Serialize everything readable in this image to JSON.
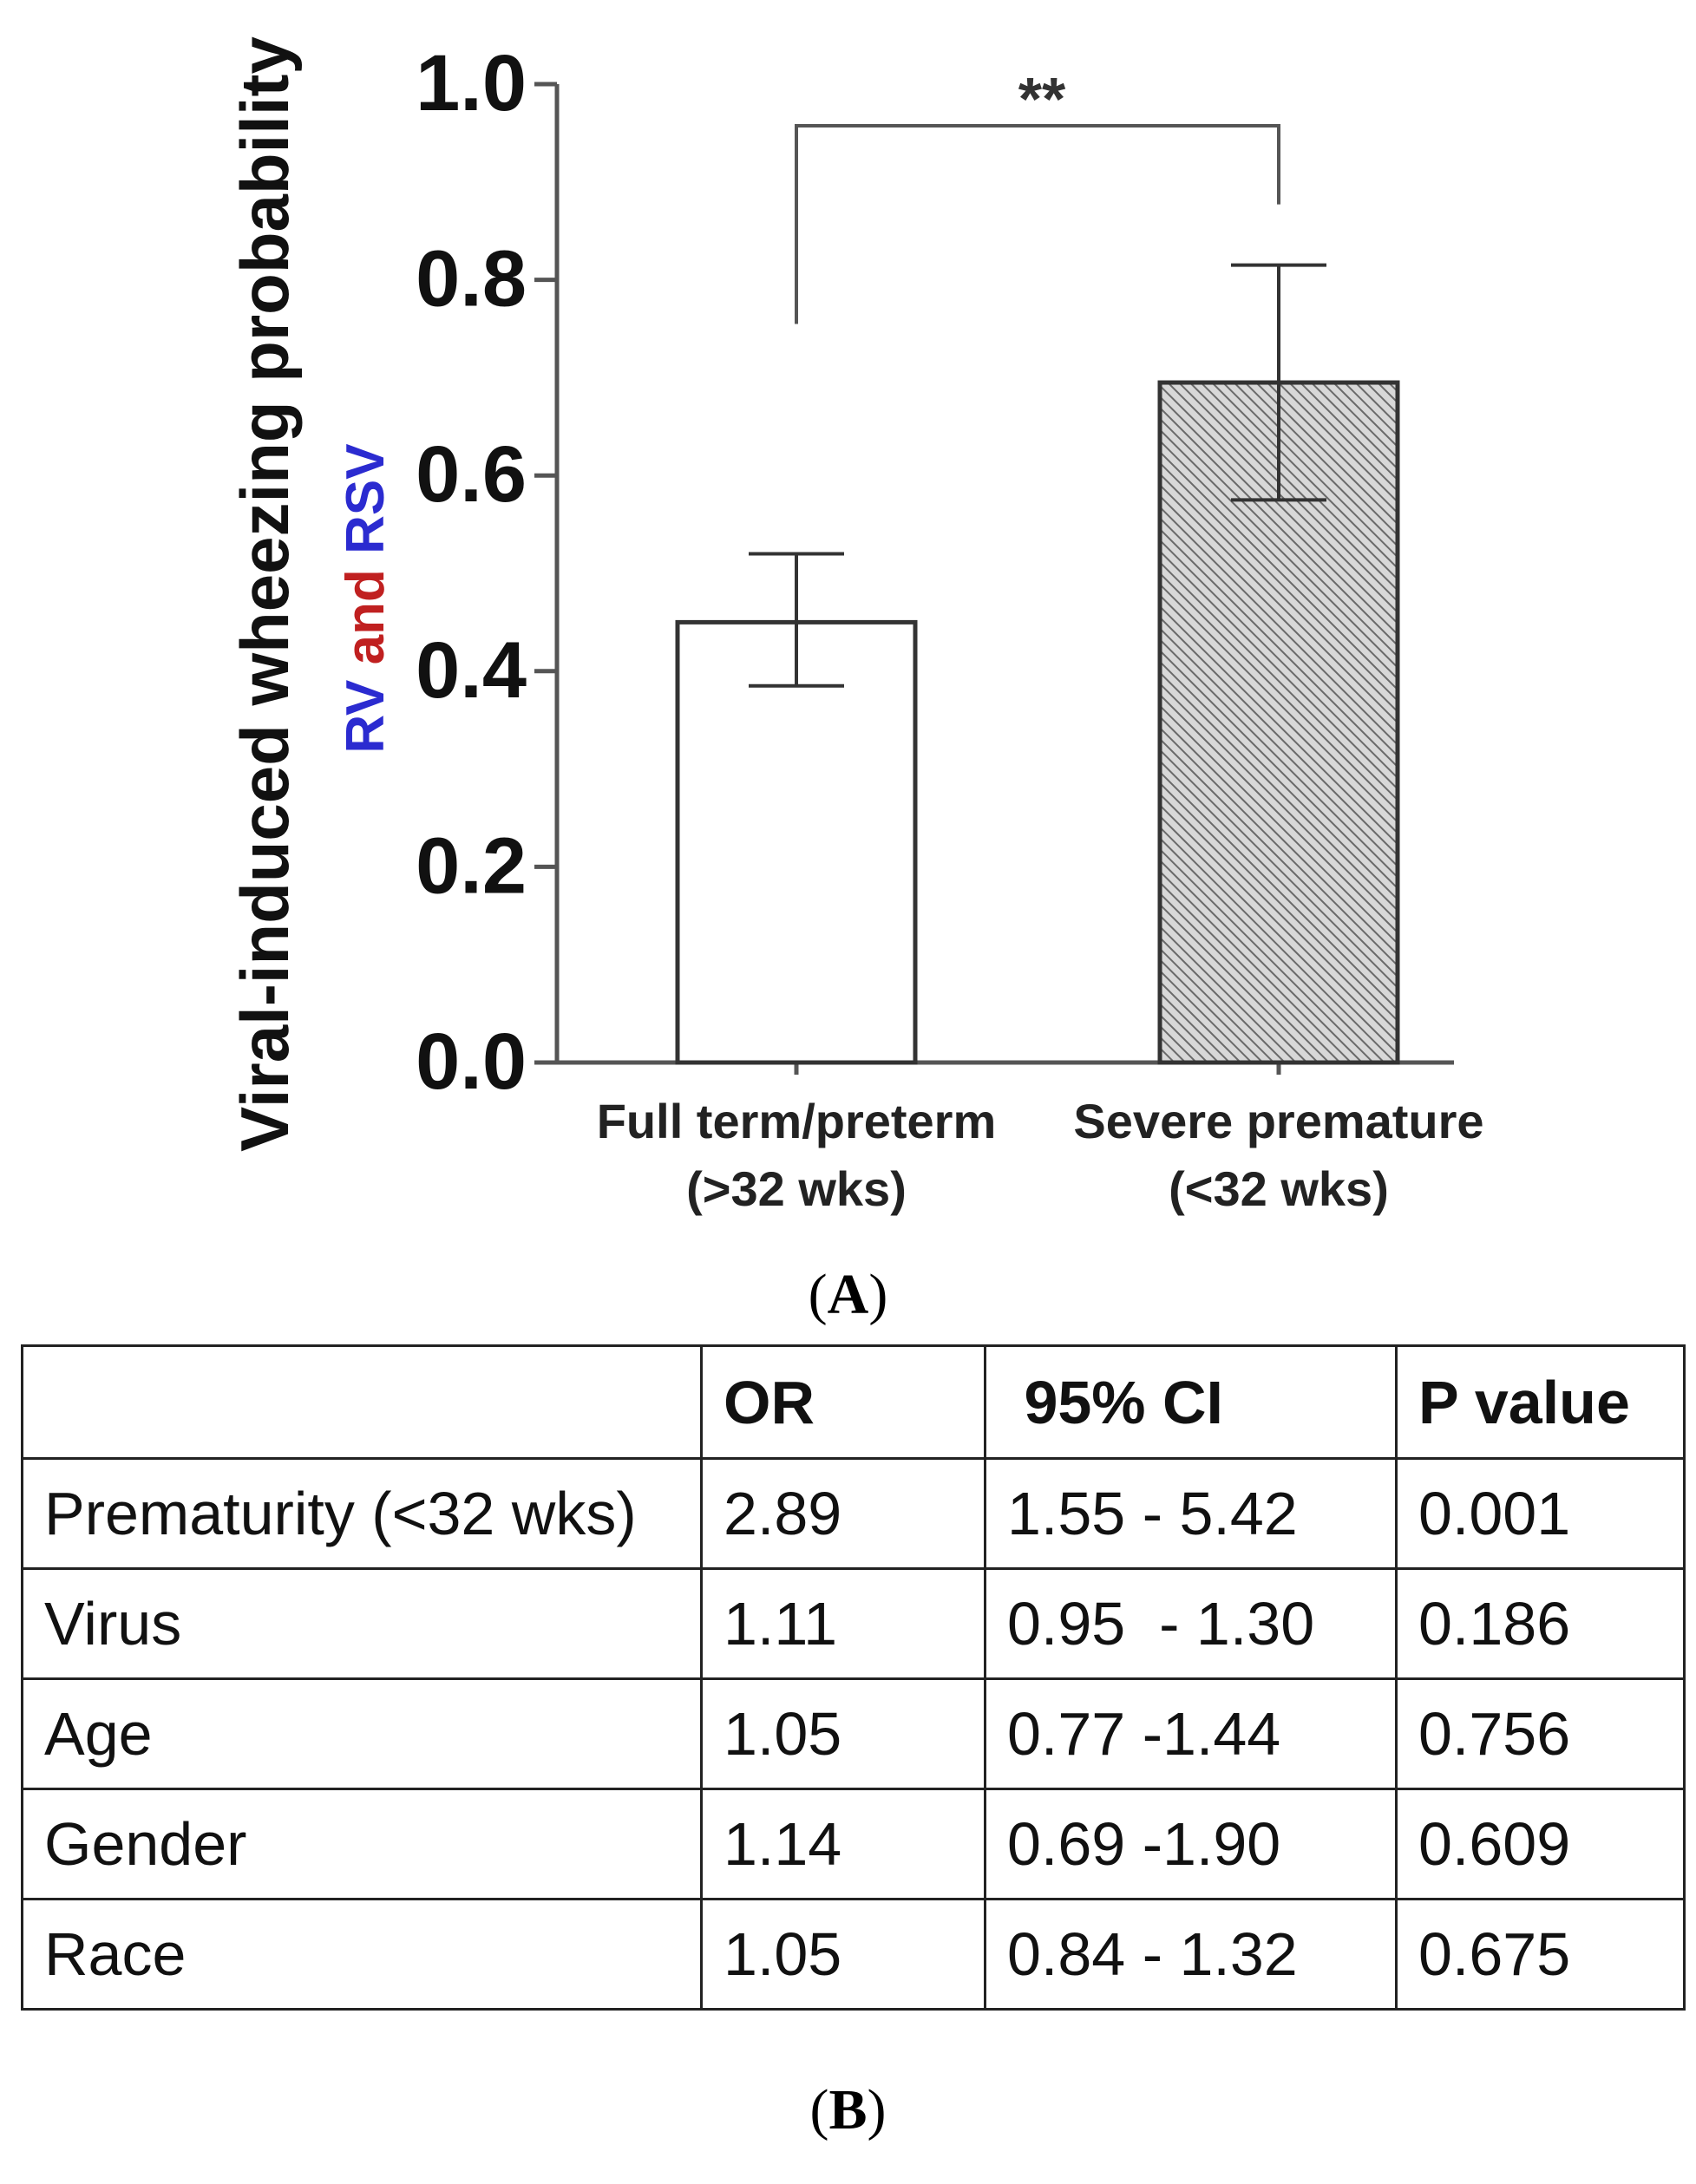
{
  "chart_data": {
    "type": "bar",
    "panel": "A",
    "categories": [
      {
        "line1": "Full term/preterm",
        "line2": "(>32 wks)"
      },
      {
        "line1": "Severe premature",
        "line2": "(<32 wks)"
      }
    ],
    "values": [
      0.45,
      0.695
    ],
    "error_low": [
      0.385,
      0.575
    ],
    "error_high": [
      0.52,
      0.815
    ],
    "bar_fills": [
      "white",
      "hatched-gray"
    ],
    "ylabel": "Viral-induced wheezing probability",
    "ylabel_sub_parts": [
      {
        "text": "RV",
        "color": "#2b2bd0"
      },
      {
        "text": " and ",
        "color": "#c02020"
      },
      {
        "text": "RSV",
        "color": "#2b2bd0"
      }
    ],
    "ylim": [
      0,
      1.0
    ],
    "yticks": [
      "0.0",
      "0.2",
      "0.4",
      "0.6",
      "0.8",
      "1.0"
    ],
    "significance": "**",
    "grid": false
  },
  "labels": {
    "panel_a": "A",
    "panel_b": "B"
  },
  "table": {
    "headers": [
      "",
      "OR",
      " 95% CI",
      "P value"
    ],
    "rows": [
      [
        "Prematurity (<32 wks)",
        "2.89",
        "1.55 - 5.42",
        "0.001"
      ],
      [
        "Virus",
        "1.11",
        "0.95  - 1.30",
        "0.186"
      ],
      [
        "Age",
        "1.05",
        "0.77 -1.44",
        "0.756"
      ],
      [
        "Gender",
        "1.14",
        "0.69 -1.90",
        "0.609"
      ],
      [
        "Race",
        "1.05",
        "0.84 - 1.32",
        "0.675"
      ]
    ]
  }
}
